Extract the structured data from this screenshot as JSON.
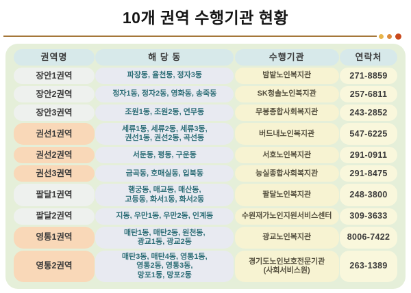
{
  "title": "10개 권역 수행기관 현황",
  "colors": {
    "container_bg": "#e5efd9",
    "header_cell_bg": "#d7e9ea",
    "region_gray_bg": "#eef1ee",
    "region_peach_bg": "#f9d8b8",
    "dong_cell_bg": "#e8eaf1",
    "agency_cell_bg": "#f7f3d2",
    "contact_cell_bg": "#f9f7dc",
    "dong_text": "#2f6f78",
    "divider_line": "#a5773a",
    "dot1": "#e7b54b",
    "dot2": "#dc8a3d",
    "dot3": "#c9491d"
  },
  "table": {
    "headers": [
      "권역명",
      "해 당 동",
      "수행기관",
      "연락처"
    ],
    "rows": [
      {
        "region": "장안1권역",
        "tone": "gray",
        "dongs": [
          "파장동, 율천동, 정자3동"
        ],
        "agency": [
          "밤밭노인복지관"
        ],
        "contact": "271-8859"
      },
      {
        "region": "장안2권역",
        "tone": "gray",
        "dongs": [
          "정자1동, 정자2동, 영화동, 송죽동"
        ],
        "agency": [
          "SK청솔노인복지관"
        ],
        "contact": "257-6811"
      },
      {
        "region": "장안3권역",
        "tone": "gray",
        "dongs": [
          "조원1동, 조원2동, 연무동"
        ],
        "agency": [
          "무봉종합사회복지관"
        ],
        "contact": "243-2852"
      },
      {
        "region": "권선1권역",
        "tone": "peach",
        "dongs": [
          "세류1동, 세류2동, 세류3동,",
          "권선1동, 권선2동, 곡선동"
        ],
        "agency": [
          "버드내노인복지관"
        ],
        "contact": "547-6225"
      },
      {
        "region": "권선2권역",
        "tone": "peach",
        "dongs": [
          "서둔동, 평동, 구운동"
        ],
        "agency": [
          "서호노인복지관"
        ],
        "contact": "291-0911"
      },
      {
        "region": "권선3권역",
        "tone": "peach",
        "dongs": [
          "금곡동, 호매실동, 입북동"
        ],
        "agency": [
          "능실종합사회복지관"
        ],
        "contact": "291-8475"
      },
      {
        "region": "팔달1권역",
        "tone": "gray",
        "dongs": [
          "행궁동, 매교동, 매산동,",
          "고등동, 화서1동, 화서2동"
        ],
        "agency": [
          "팔달노인복지관"
        ],
        "contact": "248-3800"
      },
      {
        "region": "팔달2권역",
        "tone": "gray",
        "dongs": [
          "지동, 우만1동, 우만2동, 인계동"
        ],
        "agency": [
          "수원재가노인지원서비스센터"
        ],
        "contact": "309-3633"
      },
      {
        "region": "영통1권역",
        "tone": "peach",
        "dongs": [
          "매탄1동, 매탄2동, 원천동,",
          "광교1동, 광교2동"
        ],
        "agency": [
          "광교노인복지관"
        ],
        "contact": "8006-7422"
      },
      {
        "region": "영통2권역",
        "tone": "peach",
        "dongs": [
          "매탄3동, 매탄4동, 영통1동,",
          "영통2동, 영통3동,",
          "망포1동, 망포2동"
        ],
        "agency": [
          "경기도노인보호전문기관",
          "(사회서비스원)"
        ],
        "contact": "263-1389"
      }
    ]
  }
}
